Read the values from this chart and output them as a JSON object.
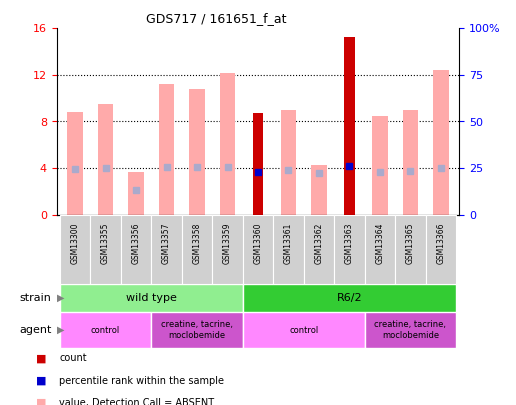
{
  "title": "GDS717 / 161651_f_at",
  "samples": [
    "GSM13300",
    "GSM13355",
    "GSM13356",
    "GSM13357",
    "GSM13358",
    "GSM13359",
    "GSM13360",
    "GSM13361",
    "GSM13362",
    "GSM13363",
    "GSM13364",
    "GSM13365",
    "GSM13366"
  ],
  "count_values": [
    null,
    null,
    null,
    null,
    null,
    null,
    8.7,
    null,
    null,
    15.3,
    null,
    null,
    null
  ],
  "percentile_values": [
    null,
    null,
    null,
    null,
    null,
    null,
    3.7,
    null,
    null,
    4.2,
    null,
    null,
    null
  ],
  "value_absent": [
    8.8,
    9.5,
    3.7,
    11.2,
    10.8,
    12.2,
    null,
    9.0,
    4.3,
    null,
    8.5,
    9.0,
    12.4
  ],
  "rank_absent": [
    3.9,
    4.0,
    2.1,
    4.1,
    4.1,
    4.1,
    null,
    3.85,
    3.6,
    null,
    3.65,
    3.75,
    4.0
  ],
  "ylim_left": [
    0,
    16
  ],
  "ylim_right": [
    0,
    100
  ],
  "yticks_left": [
    0,
    4,
    8,
    12,
    16
  ],
  "yticks_right": [
    0,
    25,
    50,
    75,
    100
  ],
  "ytick_labels_right": [
    "0",
    "25",
    "50",
    "75",
    "100%"
  ],
  "strain_groups": [
    {
      "label": "wild type",
      "start": 0,
      "end": 6,
      "color": "#90ee90"
    },
    {
      "label": "R6/2",
      "start": 6,
      "end": 13,
      "color": "#33cc33"
    }
  ],
  "agent_groups": [
    {
      "label": "control",
      "start": 0,
      "end": 3,
      "color": "#ff88ff"
    },
    {
      "label": "creatine, tacrine,\nmoclobemide",
      "start": 3,
      "end": 6,
      "color": "#cc55cc"
    },
    {
      "label": "control",
      "start": 6,
      "end": 10,
      "color": "#ff88ff"
    },
    {
      "label": "creatine, tacrine,\nmoclobemide",
      "start": 10,
      "end": 13,
      "color": "#cc55cc"
    }
  ],
  "color_count": "#cc0000",
  "color_percentile": "#0000cc",
  "color_value_absent": "#ffaaaa",
  "color_rank_absent": "#aaaacc",
  "bar_width": 0.5,
  "count_bar_width": 0.35
}
